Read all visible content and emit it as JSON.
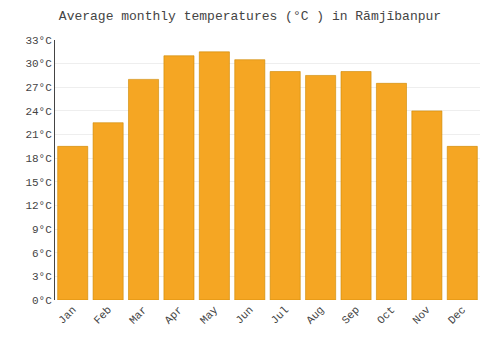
{
  "chart_data": {
    "type": "bar",
    "title": "Average monthly temperatures (°C ) in Rāmjībanpur",
    "categories": [
      "Jan",
      "Feb",
      "Mar",
      "Apr",
      "May",
      "Jun",
      "Jul",
      "Aug",
      "Sep",
      "Oct",
      "Nov",
      "Dec"
    ],
    "values": [
      19.5,
      22.5,
      28.0,
      31.0,
      31.5,
      30.5,
      29.0,
      28.5,
      29.0,
      27.5,
      24.0,
      19.5
    ],
    "color": "#F5A623",
    "ylim": [
      0,
      33
    ],
    "yticks": [
      {
        "value": 0,
        "label": "0°C"
      },
      {
        "value": 3,
        "label": "3°C"
      },
      {
        "value": 6,
        "label": "6°C"
      },
      {
        "value": 9,
        "label": "9°C"
      },
      {
        "value": 12,
        "label": "12°C"
      },
      {
        "value": 15,
        "label": "15°C"
      },
      {
        "value": 18,
        "label": "18°C"
      },
      {
        "value": 21,
        "label": "21°C"
      },
      {
        "value": 24,
        "label": "24°C"
      },
      {
        "value": 27,
        "label": "27°C"
      },
      {
        "value": 30,
        "label": "30°C"
      },
      {
        "value": 33,
        "label": "33°C"
      }
    ],
    "grid": true
  }
}
